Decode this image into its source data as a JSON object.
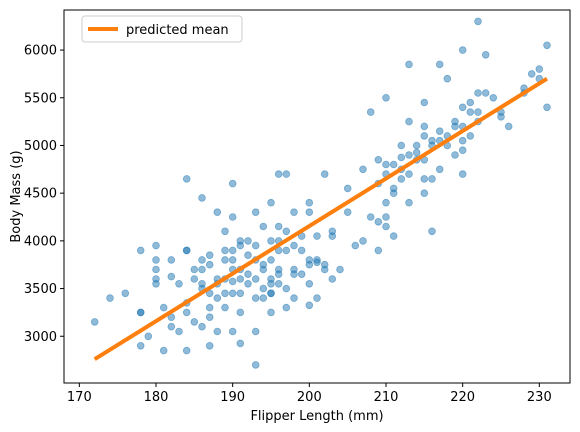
{
  "chart_data": {
    "type": "scatter",
    "title": "",
    "xlabel": "Flipper Length (mm)",
    "ylabel": "Body Mass (g)",
    "xlim": [
      168,
      234
    ],
    "ylim": [
      2510,
      6420
    ],
    "xticks": [
      170,
      180,
      190,
      200,
      210,
      220,
      230
    ],
    "yticks": [
      3000,
      3500,
      4000,
      4500,
      5000,
      5500,
      6000
    ],
    "grid": false,
    "legend": {
      "placement": "top-left",
      "entries": [
        "predicted mean"
      ]
    },
    "colors": {
      "points": "#1f77b4",
      "line": "#ff7f0e"
    },
    "series": [
      {
        "name": "",
        "kind": "scatter",
        "points": [
          [
            172,
            3150
          ],
          [
            174,
            3400
          ],
          [
            176,
            3450
          ],
          [
            178,
            3250
          ],
          [
            178,
            3900
          ],
          [
            178,
            3250
          ],
          [
            178,
            2900
          ],
          [
            179,
            3000
          ],
          [
            180,
            3700
          ],
          [
            180,
            3600
          ],
          [
            180,
            3800
          ],
          [
            180,
            3550
          ],
          [
            180,
            3950
          ],
          [
            181,
            3300
          ],
          [
            181,
            2850
          ],
          [
            182,
            3625
          ],
          [
            182,
            3800
          ],
          [
            182,
            3200
          ],
          [
            182,
            3100
          ],
          [
            183,
            3050
          ],
          [
            183,
            3550
          ],
          [
            184,
            3900
          ],
          [
            184,
            3900
          ],
          [
            184,
            3350
          ],
          [
            184,
            4650
          ],
          [
            184,
            3250
          ],
          [
            184,
            2850
          ],
          [
            185,
            3700
          ],
          [
            185,
            3600
          ],
          [
            185,
            3150
          ],
          [
            186,
            3500
          ],
          [
            186,
            4450
          ],
          [
            186,
            3800
          ],
          [
            186,
            3700
          ],
          [
            186,
            3100
          ],
          [
            186,
            3550
          ],
          [
            187,
            3750
          ],
          [
            187,
            3450
          ],
          [
            187,
            2900
          ],
          [
            187,
            3200
          ],
          [
            187,
            3850
          ],
          [
            187,
            3300
          ],
          [
            188,
            3400
          ],
          [
            188,
            3600
          ],
          [
            188,
            3050
          ],
          [
            188,
            4300
          ],
          [
            188,
            3550
          ],
          [
            189,
            3800
          ],
          [
            189,
            3300
          ],
          [
            189,
            3900
          ],
          [
            189,
            3450
          ],
          [
            189,
            4100
          ],
          [
            189,
            3600
          ],
          [
            190,
            3700
          ],
          [
            190,
            4600
          ],
          [
            190,
            4250
          ],
          [
            190,
            3450
          ],
          [
            190,
            3575
          ],
          [
            190,
            3050
          ],
          [
            190,
            3900
          ],
          [
            190,
            3800
          ],
          [
            191,
            3450
          ],
          [
            191,
            4000
          ],
          [
            191,
            3700
          ],
          [
            191,
            3250
          ],
          [
            191,
            3950
          ],
          [
            191,
            3600
          ],
          [
            191,
            2925
          ],
          [
            192,
            3650
          ],
          [
            192,
            4000
          ],
          [
            192,
            3850
          ],
          [
            192,
            3550
          ],
          [
            193,
            3400
          ],
          [
            193,
            3800
          ],
          [
            193,
            4300
          ],
          [
            193,
            3050
          ],
          [
            193,
            3600
          ],
          [
            193,
            2700
          ],
          [
            193,
            3950
          ],
          [
            194,
            3500
          ],
          [
            194,
            3700
          ],
          [
            194,
            4150
          ],
          [
            194,
            3400
          ],
          [
            194,
            3750
          ],
          [
            195,
            3600
          ],
          [
            195,
            4000
          ],
          [
            195,
            3550
          ],
          [
            195,
            3450
          ],
          [
            195,
            3800
          ],
          [
            195,
            4400
          ],
          [
            195,
            3250
          ],
          [
            195,
            3450
          ],
          [
            196,
            3700
          ],
          [
            196,
            4000
          ],
          [
            196,
            3900
          ],
          [
            196,
            3550
          ],
          [
            196,
            4700
          ],
          [
            196,
            3650
          ],
          [
            196,
            4150
          ],
          [
            197,
            4100
          ],
          [
            197,
            3900
          ],
          [
            197,
            3300
          ],
          [
            197,
            3500
          ],
          [
            197,
            4700
          ],
          [
            198,
            3700
          ],
          [
            198,
            4300
          ],
          [
            198,
            3650
          ],
          [
            198,
            3400
          ],
          [
            198,
            3950
          ],
          [
            199,
            3900
          ],
          [
            199,
            3650
          ],
          [
            199,
            4050
          ],
          [
            200,
            3800
          ],
          [
            200,
            4300
          ],
          [
            200,
            3325
          ],
          [
            200,
            3750
          ],
          [
            200,
            4400
          ],
          [
            200,
            3550
          ],
          [
            201,
            3800
          ],
          [
            201,
            4050
          ],
          [
            201,
            3400
          ],
          [
            201,
            3775
          ],
          [
            202,
            3750
          ],
          [
            202,
            3700
          ],
          [
            202,
            4700
          ],
          [
            203,
            4100
          ],
          [
            203,
            4050
          ],
          [
            203,
            3600
          ],
          [
            204,
            3700
          ],
          [
            205,
            4300
          ],
          [
            205,
            4550
          ],
          [
            206,
            3950
          ],
          [
            207,
            4000
          ],
          [
            207,
            4750
          ],
          [
            208,
            4250
          ],
          [
            208,
            5350
          ],
          [
            209,
            3900
          ],
          [
            209,
            4600
          ],
          [
            209,
            4850
          ],
          [
            209,
            4200
          ],
          [
            210,
            4250
          ],
          [
            210,
            4400
          ],
          [
            210,
            5500
          ],
          [
            210,
            4800
          ],
          [
            210,
            4150
          ],
          [
            210,
            4700
          ],
          [
            211,
            4050
          ],
          [
            211,
            4550
          ],
          [
            211,
            4800
          ],
          [
            211,
            4500
          ],
          [
            212,
            4750
          ],
          [
            212,
            4875
          ],
          [
            212,
            5000
          ],
          [
            212,
            4650
          ],
          [
            213,
            5250
          ],
          [
            213,
            4900
          ],
          [
            213,
            4400
          ],
          [
            213,
            5850
          ],
          [
            213,
            4700
          ],
          [
            214,
            5000
          ],
          [
            214,
            4850
          ],
          [
            214,
            4925
          ],
          [
            215,
            4650
          ],
          [
            215,
            5100
          ],
          [
            215,
            4500
          ],
          [
            215,
            5450
          ],
          [
            215,
            4850
          ],
          [
            215,
            5200
          ],
          [
            216,
            4650
          ],
          [
            216,
            5050
          ],
          [
            216,
            5000
          ],
          [
            216,
            4100
          ],
          [
            217,
            5050
          ],
          [
            217,
            4750
          ],
          [
            217,
            5850
          ],
          [
            217,
            5150
          ],
          [
            218,
            5700
          ],
          [
            218,
            5100
          ],
          [
            218,
            5000
          ],
          [
            219,
            4900
          ],
          [
            219,
            5250
          ],
          [
            219,
            5200
          ],
          [
            220,
            5200
          ],
          [
            220,
            6000
          ],
          [
            220,
            4950
          ],
          [
            220,
            4700
          ],
          [
            220,
            5400
          ],
          [
            220,
            5050
          ],
          [
            221,
            5350
          ],
          [
            221,
            5100
          ],
          [
            221,
            5450
          ],
          [
            222,
            5250
          ],
          [
            222,
            5550
          ],
          [
            222,
            6300
          ],
          [
            222,
            5350
          ],
          [
            223,
            5550
          ],
          [
            223,
            5950
          ],
          [
            224,
            5500
          ],
          [
            225,
            5300
          ],
          [
            225,
            5350
          ],
          [
            226,
            5200
          ],
          [
            228,
            5550
          ],
          [
            228,
            5600
          ],
          [
            229,
            5750
          ],
          [
            230,
            5700
          ],
          [
            230,
            5800
          ],
          [
            231,
            5400
          ],
          [
            231,
            6050
          ]
        ]
      },
      {
        "name": "predicted mean",
        "kind": "line",
        "points": [
          [
            172,
            2760
          ],
          [
            231,
            5700
          ]
        ]
      }
    ]
  }
}
